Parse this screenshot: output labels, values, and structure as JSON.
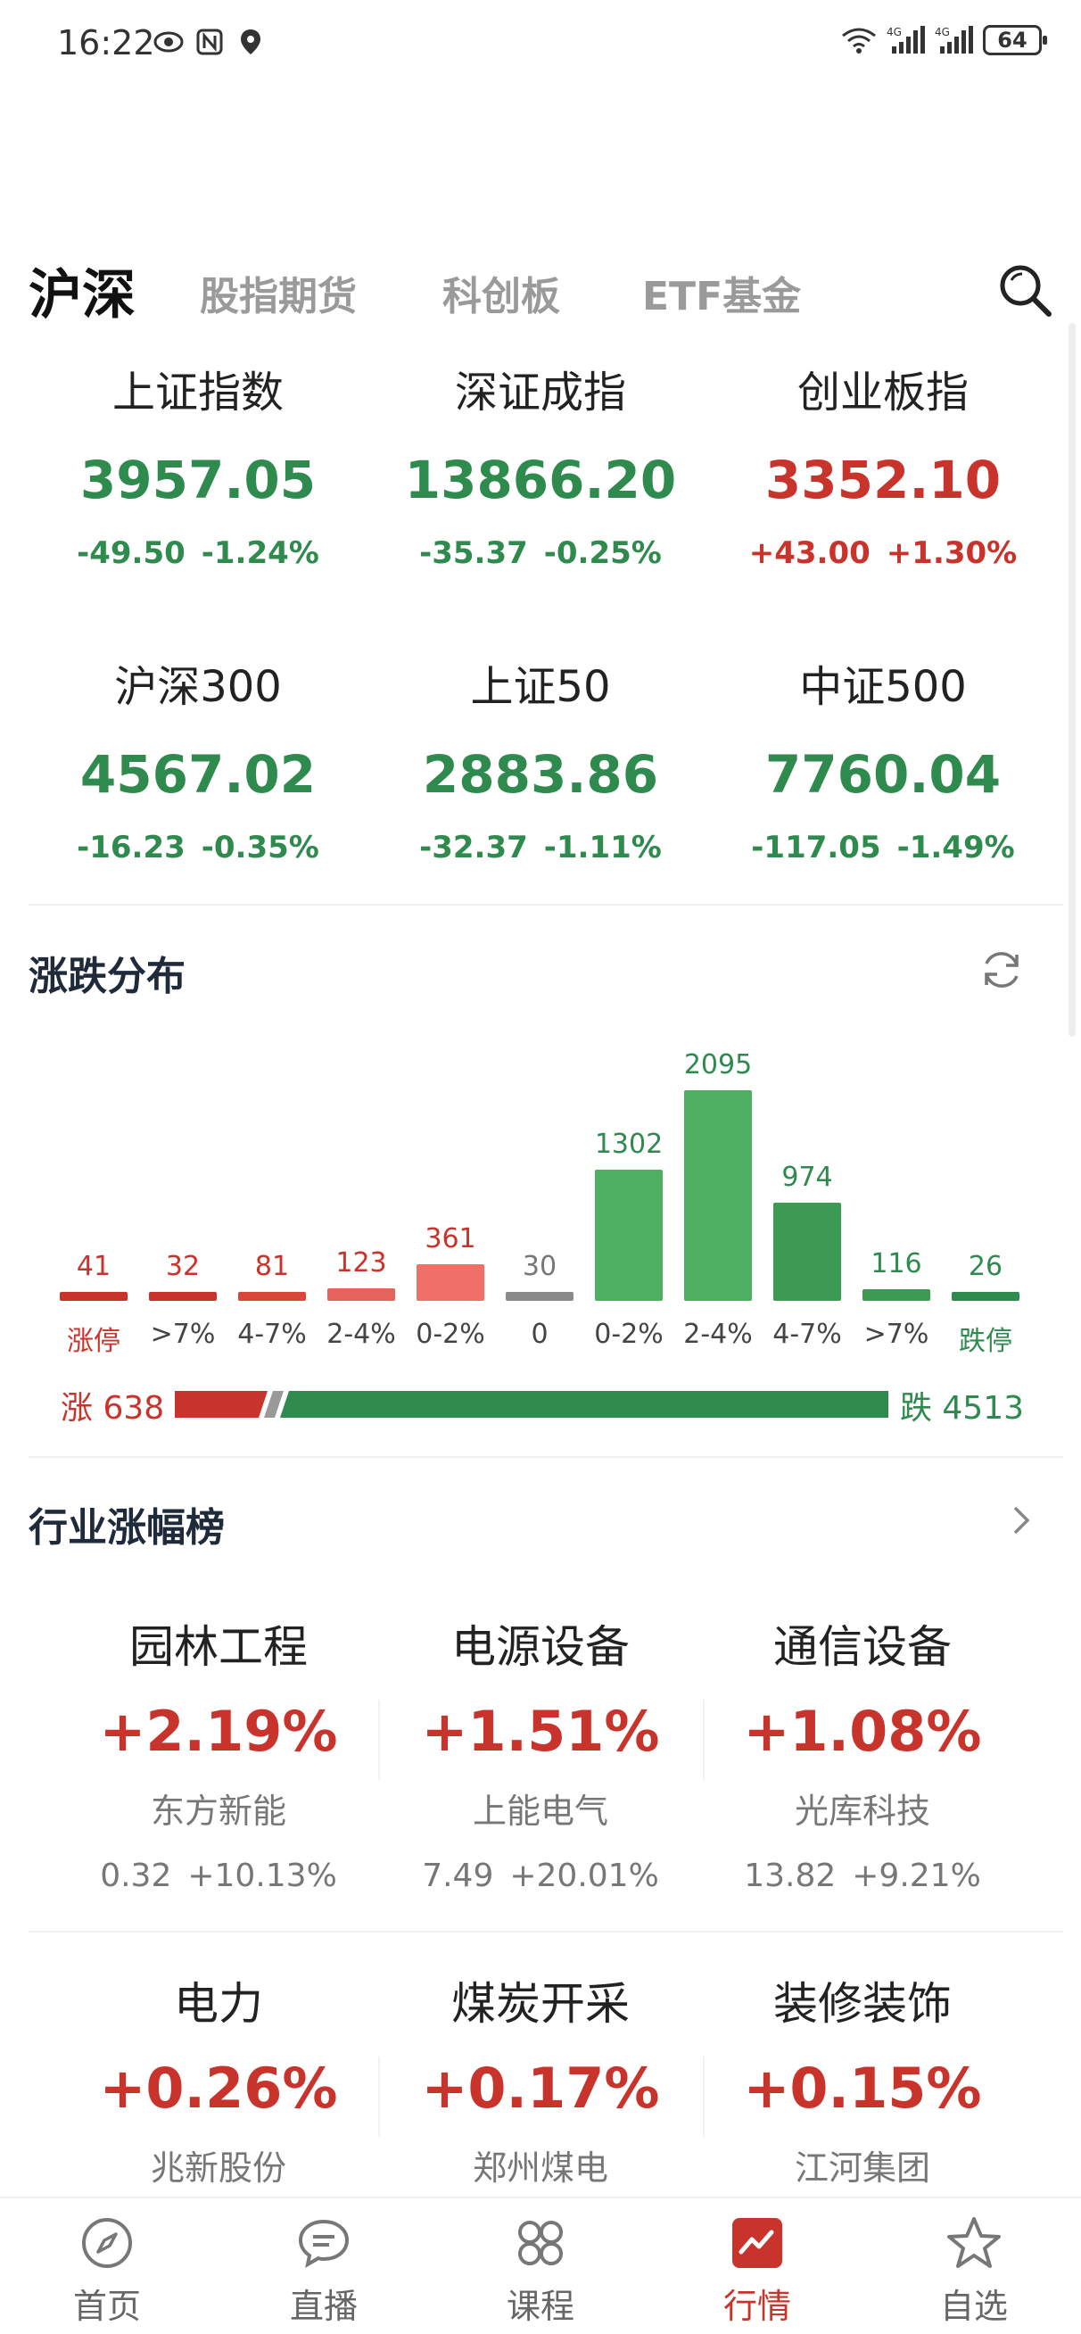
{
  "status_bar": {
    "time": "16:22",
    "left_icons": [
      "eye-icon",
      "nfc-icon",
      "location-icon"
    ],
    "right_icons": [
      "wifi-icon",
      "signal-4g-icon",
      "signal-4g-icon"
    ],
    "battery": "64"
  },
  "tabs": [
    {
      "label": "沪深",
      "active": true
    },
    {
      "label": "股指期货",
      "active": false
    },
    {
      "label": "科创板",
      "active": false
    },
    {
      "label": "ETF基金",
      "active": false
    }
  ],
  "indices": [
    {
      "name": "上证指数",
      "price": "3957.05",
      "change": "-49.50",
      "pct": "-1.24%",
      "dir": "down"
    },
    {
      "name": "深证成指",
      "price": "13866.20",
      "change": "-35.37",
      "pct": "-0.25%",
      "dir": "down"
    },
    {
      "name": "创业板指",
      "price": "3352.10",
      "change": "+43.00",
      "pct": "+1.30%",
      "dir": "up"
    },
    {
      "name": "沪深300",
      "price": "4567.02",
      "change": "-16.23",
      "pct": "-0.35%",
      "dir": "down"
    },
    {
      "name": "上证50",
      "price": "2883.86",
      "change": "-32.37",
      "pct": "-1.11%",
      "dir": "down"
    },
    {
      "name": "中证500",
      "price": "7760.04",
      "change": "-117.05",
      "pct": "-1.49%",
      "dir": "down"
    }
  ],
  "distribution": {
    "title": "涨跌分布",
    "bars": [
      {
        "label": "涨停",
        "value": "41",
        "color": "#c8342b",
        "label_color": "#c8342b"
      },
      {
        "label": ">7%",
        "value": "32",
        "color": "#c8342b",
        "label_color": "#444444"
      },
      {
        "label": "4-7%",
        "value": "81",
        "color": "#d9473b",
        "label_color": "#444444"
      },
      {
        "label": "2-4%",
        "value": "123",
        "color": "#e5635a",
        "label_color": "#444444"
      },
      {
        "label": "0-2%",
        "value": "361",
        "color": "#f07068",
        "label_color": "#444444"
      },
      {
        "label": "0",
        "value": "30",
        "color": "#8a8a8a",
        "label_color": "#444444"
      },
      {
        "label": "0-2%",
        "value": "1302",
        "color": "#4daf5f",
        "label_color": "#444444"
      },
      {
        "label": "2-4%",
        "value": "2095",
        "color": "#4daf5f",
        "label_color": "#444444"
      },
      {
        "label": "4-7%",
        "value": "974",
        "color": "#3d9a52",
        "label_color": "#444444"
      },
      {
        "label": ">7%",
        "value": "116",
        "color": "#3d9a52",
        "label_color": "#444444"
      },
      {
        "label": "跌停",
        "value": "26",
        "color": "#2f8a4e",
        "label_color": "#2f8a4e"
      }
    ],
    "up_label": "涨 638",
    "down_label": "跌 4513",
    "up_count": 638,
    "down_count": 4513
  },
  "industry": {
    "title": "行业涨幅榜",
    "items": [
      {
        "name": "园林工程",
        "pct": "+2.19%",
        "leader": "东方新能",
        "leader_price": "0.32",
        "leader_pct": "+10.13%"
      },
      {
        "name": "电源设备",
        "pct": "+1.51%",
        "leader": "上能电气",
        "leader_price": "7.49",
        "leader_pct": "+20.01%"
      },
      {
        "name": "通信设备",
        "pct": "+1.08%",
        "leader": "光库科技",
        "leader_price": "13.82",
        "leader_pct": "+9.21%"
      },
      {
        "name": "电力",
        "pct": "+0.26%",
        "leader": "兆新股份",
        "leader_price": "",
        "leader_pct": ""
      },
      {
        "name": "煤炭开采",
        "pct": "+0.17%",
        "leader": "郑州煤电",
        "leader_price": "",
        "leader_pct": ""
      },
      {
        "name": "装修装饰",
        "pct": "+0.15%",
        "leader": "江河集团",
        "leader_price": "",
        "leader_pct": ""
      }
    ]
  },
  "colors": {
    "up": "#c8342b",
    "down": "#2f8a4e",
    "neutral": "#8a8a8a"
  },
  "bottom_nav": [
    {
      "label": "首页",
      "icon": "compass-icon",
      "active": false
    },
    {
      "label": "直播",
      "icon": "chat-bubble-icon",
      "active": false
    },
    {
      "label": "课程",
      "icon": "grid-icon",
      "active": false
    },
    {
      "label": "行情",
      "icon": "market-chart-icon",
      "active": true
    },
    {
      "label": "自选",
      "icon": "star-icon",
      "active": false
    }
  ]
}
